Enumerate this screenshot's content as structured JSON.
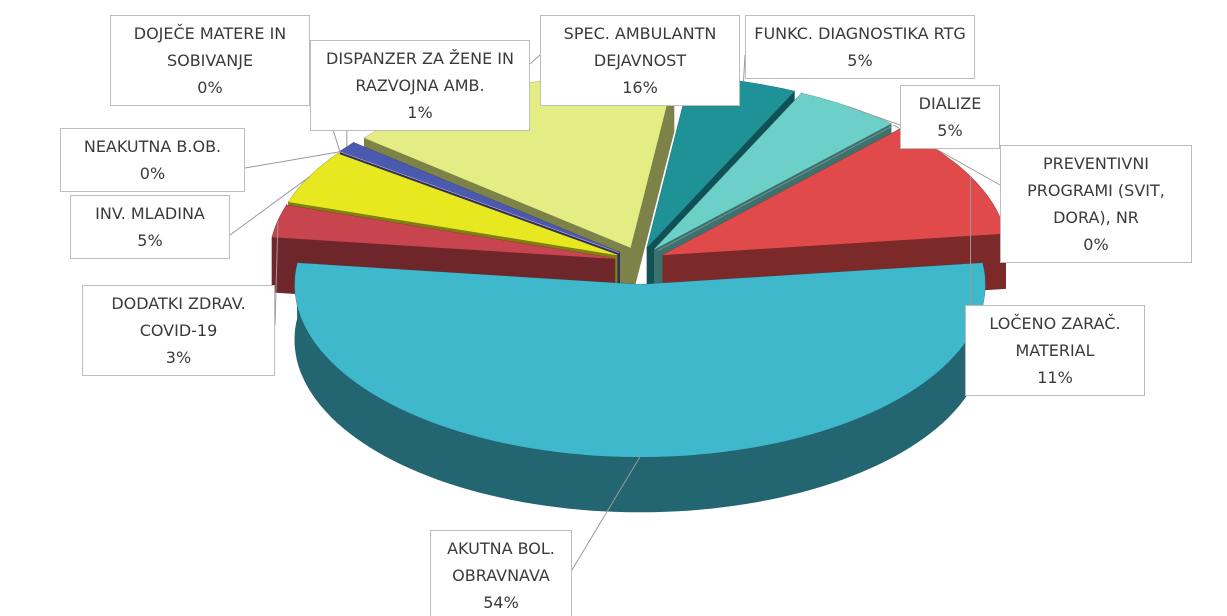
{
  "chart_data": {
    "type": "pie3d",
    "categories": [
      "AKUTNA BOL. OBRAVNAVA",
      "DODATKI ZDRAV. COVID-19",
      "INV. MLADINA",
      "NEAKUTNA B.OB.",
      "DOJEČE MATERE IN SOBIVANJE",
      "DISPANZER ZA ŽENE IN RAZVOJNA AMB.",
      "SPEC. AMBULANTN DEJAVNOST",
      "FUNKC. DIAGNOSTIKA RTG",
      "DIALIZE",
      "PREVENTIVNI PROGRAMI (SVIT, DORA), NR",
      "LOČENO ZARAČ. MATERIAL"
    ],
    "values": [
      54,
      3,
      5,
      0,
      0,
      1,
      16,
      5,
      5,
      0,
      11
    ],
    "value_labels": [
      "54%",
      "3%",
      "5%",
      "0%",
      "0%",
      "1%",
      "16%",
      "5%",
      "5%",
      "0%",
      "11%"
    ],
    "colors": [
      "#3fb8cc",
      "#c8454f",
      "#e8e820",
      "#3f5fa8",
      "#d9a6bd",
      "#4a5ab0",
      "#e4ec84",
      "#1f9298",
      "#6cd0c8",
      "#a0a0a0",
      "#e04a4a"
    ]
  }
}
